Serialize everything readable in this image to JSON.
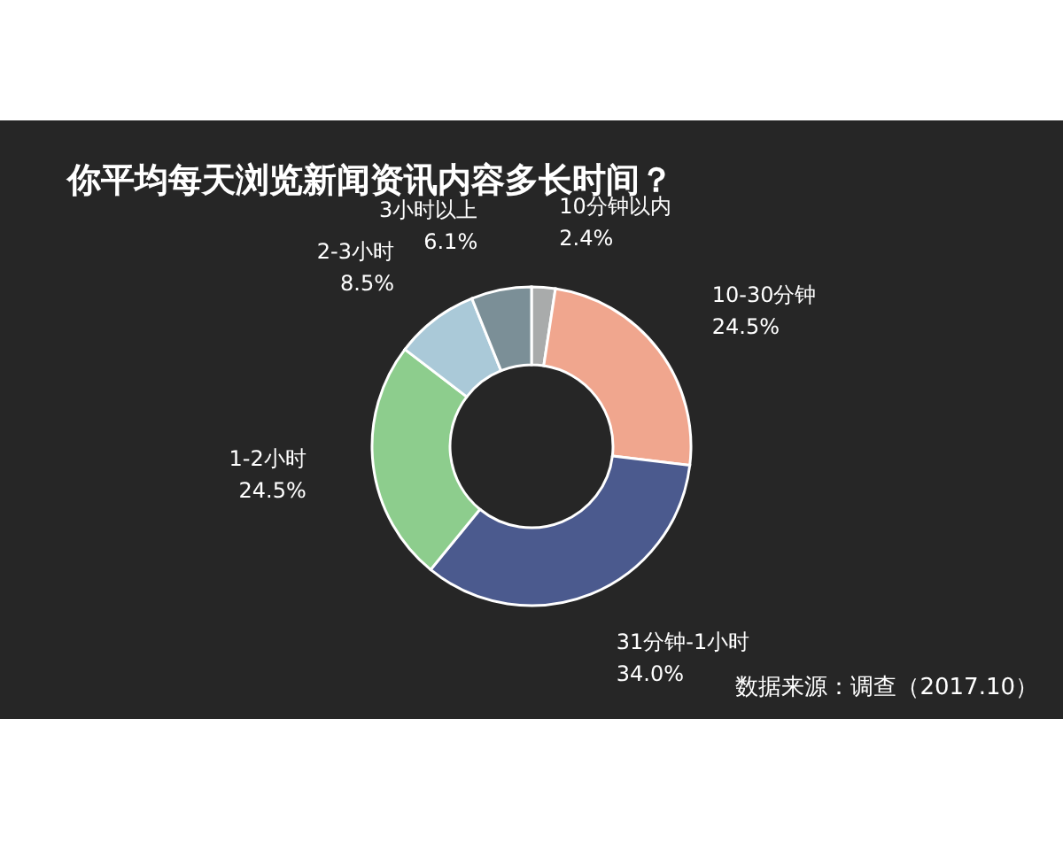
{
  "chart_data": {
    "type": "donut",
    "title": "你平均每天浏览新闻资讯内容多长时间？",
    "categories": [
      "10分钟以内",
      "10-30分钟",
      "31分钟-1小时",
      "1-2小时",
      "2-3小时",
      "3小时以上"
    ],
    "values": [
      2.4,
      24.5,
      34.0,
      24.5,
      8.5,
      6.1
    ],
    "colors": [
      "#a9abab",
      "#f0a68e",
      "#4b5a8e",
      "#8dcd8d",
      "#aac9d8",
      "#7b8f97"
    ],
    "value_labels": [
      "2.4%",
      "24.5%",
      "34.0%",
      "24.5%",
      "8.5%",
      "6.1%"
    ],
    "annotations": [
      "数据来源：调查（2017.10）"
    ]
  }
}
